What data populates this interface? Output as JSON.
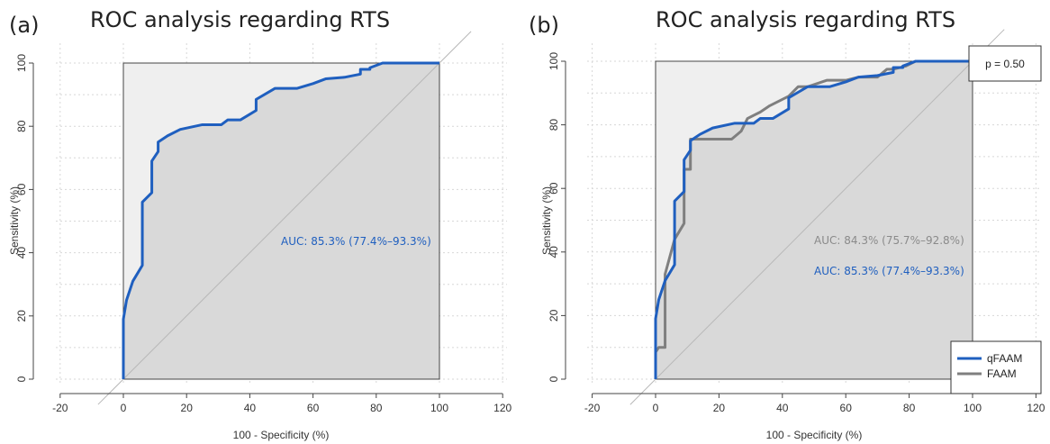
{
  "chart_data": [
    {
      "panel": "(a)",
      "type": "line",
      "title": "ROC analysis regarding RTS",
      "xlabel": "100 - Specificity (%)",
      "ylabel": "Sensitivity (%)",
      "xlim": [
        -20,
        120
      ],
      "ylim": [
        0,
        100
      ],
      "xticks": [
        "-20",
        "0",
        "20",
        "40",
        "60",
        "80",
        "100",
        "120"
      ],
      "yticks": [
        "0",
        "20",
        "40",
        "60",
        "80",
        "100"
      ],
      "series": [
        {
          "color": "#1f5fbf",
          "x": [
            0,
            0,
            1,
            3,
            6,
            6,
            9,
            9,
            11,
            11,
            14,
            18,
            25,
            31,
            33,
            37,
            42,
            42,
            48,
            55,
            60,
            64,
            70,
            75,
            75,
            78,
            78,
            82,
            100
          ],
          "y": [
            0,
            19,
            25,
            31,
            36,
            56,
            59,
            69,
            72,
            75,
            77,
            79,
            80.5,
            80.5,
            82,
            82,
            85,
            88.5,
            92,
            92,
            93.5,
            95,
            95.5,
            96.5,
            98,
            98,
            98.5,
            100,
            100
          ],
          "auc_label": "AUC: 85.3% (77.4%–93.3%)"
        }
      ],
      "reference_line": "diagonal",
      "grid": true
    },
    {
      "panel": "(b)",
      "type": "line",
      "title": "ROC analysis regarding RTS",
      "xlabel": "100 - Specificity (%)",
      "ylabel": "Sensitivity (%)",
      "xlim": [
        -20,
        120
      ],
      "ylim": [
        0,
        100
      ],
      "xticks": [
        "-20",
        "0",
        "20",
        "40",
        "60",
        "80",
        "100",
        "120"
      ],
      "yticks": [
        "0",
        "20",
        "40",
        "60",
        "80",
        "100"
      ],
      "p_value": "p = 0.50",
      "series": [
        {
          "name": "FAAM",
          "color": "#7f7f7f",
          "x": [
            0,
            0,
            1,
            3,
            3,
            6,
            9,
            9,
            11,
            11,
            17,
            24,
            27,
            29,
            33,
            36,
            42,
            45,
            48,
            54,
            60,
            64,
            70,
            73,
            75,
            79,
            82,
            100
          ],
          "y": [
            0,
            8.5,
            10,
            10,
            33,
            44,
            49,
            66,
            66,
            75.5,
            75.5,
            75.5,
            78,
            82,
            84,
            86,
            89,
            92,
            92,
            94,
            94,
            95,
            95,
            97.5,
            97.5,
            98.5,
            100,
            100
          ],
          "auc_label": "AUC: 84.3% (75.7%–92.8%)"
        },
        {
          "name": "qFAAM",
          "color": "#1f5fbf",
          "x": [
            0,
            0,
            1,
            3,
            6,
            6,
            9,
            9,
            11,
            11,
            14,
            18,
            25,
            31,
            33,
            37,
            42,
            42,
            48,
            55,
            60,
            64,
            70,
            75,
            75,
            78,
            78,
            82,
            100
          ],
          "y": [
            0,
            19,
            25,
            31,
            36,
            56,
            59,
            69,
            72,
            75,
            77,
            79,
            80.5,
            80.5,
            82,
            82,
            85,
            88.5,
            92,
            92,
            93.5,
            95,
            95.5,
            96.5,
            98,
            98,
            98.5,
            100,
            100
          ],
          "auc_label": "AUC: 85.3% (77.4%–93.3%)"
        }
      ],
      "legend": [
        "qFAAM",
        "FAAM"
      ],
      "legend_position": "bottom-right",
      "reference_line": "diagonal",
      "grid": true
    }
  ]
}
